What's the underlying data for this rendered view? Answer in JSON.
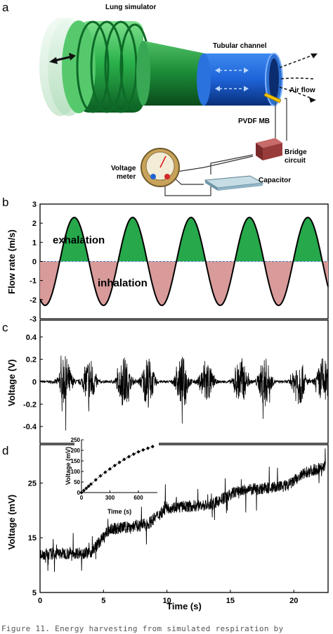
{
  "panel_a": {
    "letter": "a",
    "labels": {
      "lung": "Lung simulator",
      "channel": "Tubular channel",
      "airflow": "Air flow",
      "pvdf": "PVDF MB",
      "bridge_1": "Bridge",
      "bridge_2": "circuit",
      "meter_1": "Voltage",
      "meter_2": "meter",
      "capacitor": "Capacitor"
    },
    "colors": {
      "green": "#2bb24c",
      "blue": "#1e63d8",
      "brick": "#9a3b3b",
      "gauge": "#c9a35a",
      "plate": "#8fb3c4"
    }
  },
  "caption": "Figure 11. Energy harvesting from simulated respiration by",
  "chart_data": [
    {
      "panel": "b",
      "type": "line",
      "ylabel": "Flow rate (m/s)",
      "ylim": [
        -3,
        3
      ],
      "xlim": [
        0,
        22.7
      ],
      "yticks": [
        "3",
        "2",
        "1",
        "0",
        "-1",
        "-2",
        "-3"
      ],
      "period_s": 4.6,
      "amplitude": 2.3,
      "annotations": {
        "exhalation": "exhalation",
        "inhalation": "inhalation"
      },
      "colors": {
        "exhalation": "#26a84b",
        "inhalation": "#d99a9a",
        "zero_line": "#3d7ab8"
      }
    },
    {
      "panel": "c",
      "type": "line",
      "ylabel": "Voltage (V)",
      "ylim": [
        -0.55,
        0.55
      ],
      "xlim": [
        0,
        22.7
      ],
      "yticks": [
        "0.4",
        "0.2",
        "0",
        "-0.2",
        "-0.4"
      ],
      "bursts_s": [
        2.0,
        3.9,
        6.6,
        8.5,
        11.2,
        13.1,
        15.8,
        17.7,
        20.4,
        22.3
      ]
    },
    {
      "panel": "d",
      "type": "line",
      "ylabel": "Voltage (mV)",
      "xlabel": "Time (s)",
      "ylim": [
        5,
        32
      ],
      "xlim": [
        0,
        22.7
      ],
      "yticks": [
        "25",
        "15",
        "5"
      ],
      "xticks": [
        "0",
        "5",
        "10",
        "15",
        "20"
      ],
      "baseline": {
        "x": [
          0,
          4,
          5.5,
          8.5,
          10,
          13.5,
          15.5,
          19.5,
          21,
          22.5
        ],
        "y": [
          12,
          12.3,
          16.5,
          17.5,
          20.5,
          21,
          23.5,
          24.5,
          27,
          28
        ]
      },
      "inset": {
        "type": "scatter",
        "xlabel": "Time (s)",
        "ylabel": "Voltage (mV)",
        "xlim": [
          0,
          800
        ],
        "ylim": [
          0,
          250
        ],
        "xticks": [
          "0",
          "300",
          "600"
        ],
        "yticks": [
          "250",
          "200",
          "150",
          "100",
          "50",
          "0"
        ],
        "x": [
          0,
          25,
          50,
          75,
          100,
          150,
          200,
          250,
          300,
          350,
          400,
          450,
          500,
          550,
          600,
          650,
          700,
          750
        ],
        "y": [
          0,
          10,
          20,
          30,
          40,
          60,
          79,
          96,
          112,
          128,
          143,
          157,
          170,
          182,
          193,
          202,
          210,
          218
        ]
      }
    }
  ]
}
